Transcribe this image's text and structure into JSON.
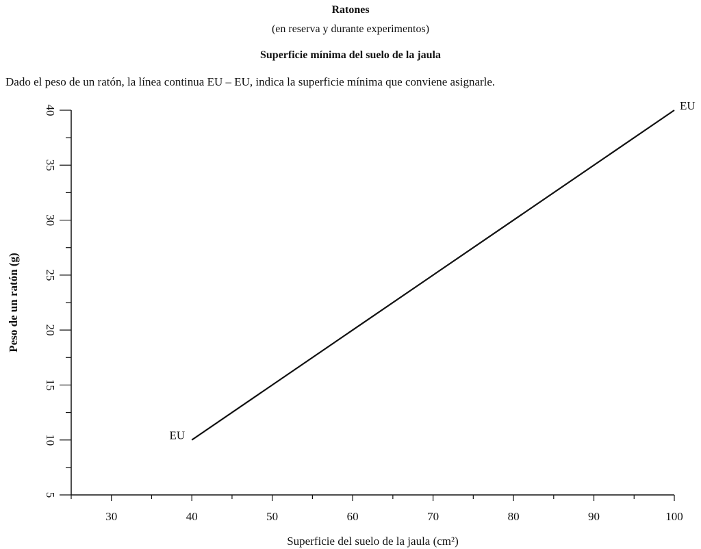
{
  "header": {
    "title": "Ratones",
    "subtitle": "(en reserva y durante experimentos)",
    "chart_title": "Superficie mínima del suelo de la jaula",
    "description": "Dado el peso de un ratón, la línea continua EU – EU, indica la superficie mínima que conviene asignarle."
  },
  "chart_data": {
    "type": "line",
    "title": "Superficie mínima del suelo de la jaula",
    "xlabel": "Superficie del suelo de la jaula (cm²)",
    "ylabel": "Peso de un ratón (g)",
    "xlim": [
      25,
      100
    ],
    "ylim": [
      5,
      40
    ],
    "x_ticks": [
      30,
      40,
      50,
      60,
      70,
      80,
      90,
      100
    ],
    "y_ticks": [
      5,
      10,
      15,
      20,
      25,
      30,
      35,
      40
    ],
    "grid": false,
    "series": [
      {
        "name": "EU",
        "x": [
          40,
          100
        ],
        "y": [
          10,
          40
        ],
        "color": "#111111"
      }
    ],
    "annotations": [
      {
        "text": "EU",
        "x": 40,
        "y": 10,
        "side": "left"
      },
      {
        "text": "EU",
        "x": 100,
        "y": 40,
        "side": "right"
      }
    ]
  }
}
